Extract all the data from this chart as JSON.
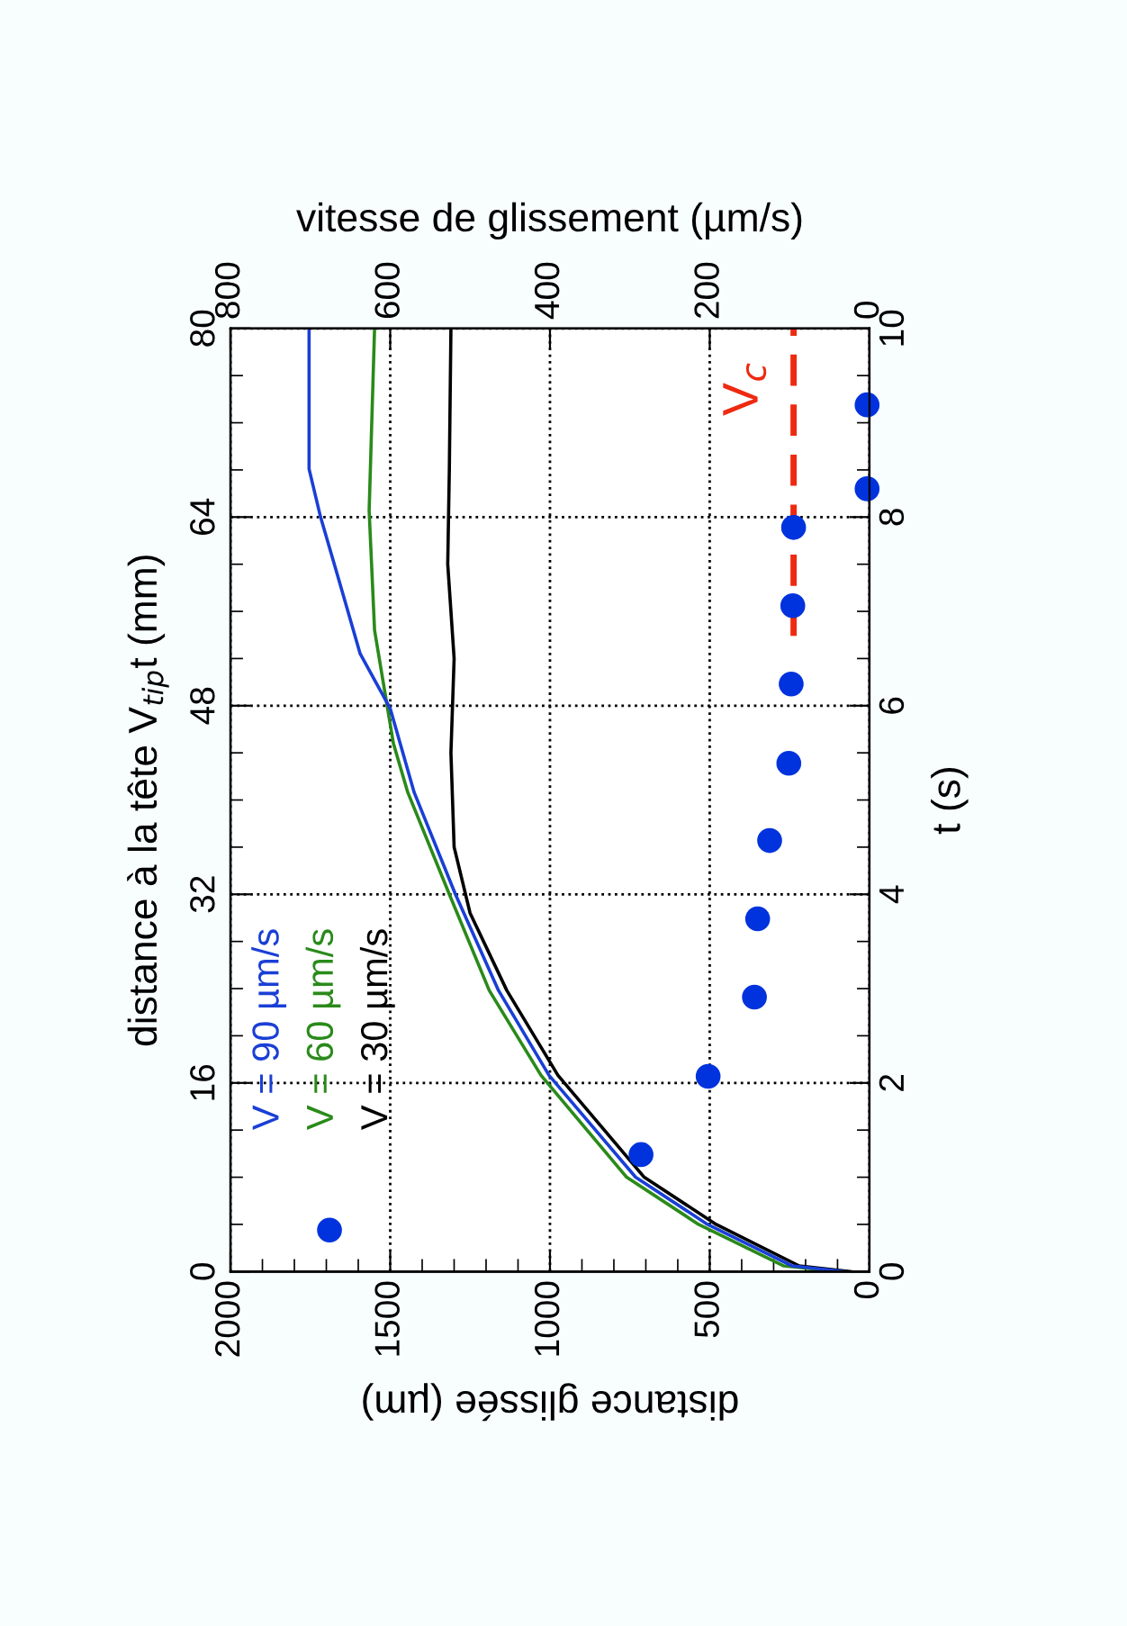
{
  "chart_data": {
    "type": "line",
    "xlabel": "distance glissée (µm)",
    "ylabel": "t (s)",
    "x2label": "vitesse de glissement (µm/s)",
    "y2label": "distance à la tête V$_{tip}$t (mm)",
    "xlim": [
      2000,
      0
    ],
    "ylim": [
      0,
      10
    ],
    "x2lim": [
      800,
      0
    ],
    "y2lim": [
      0,
      80
    ],
    "xticks": [
      2000,
      {
        "value": 1900,
        "label": null
      },
      {
        "value": 1800,
        "label": null
      },
      {
        "value": 1700,
        "label": null
      },
      {
        "value": 1600,
        "label": null
      },
      1500,
      {
        "value": 1400,
        "label": null
      },
      {
        "value": 1300,
        "label": null
      },
      {
        "value": 1200,
        "label": null
      },
      {
        "value": 1100,
        "label": null
      },
      1000,
      {
        "value": 900,
        "label": null
      },
      {
        "value": 800,
        "label": null
      },
      {
        "value": 700,
        "label": null
      },
      {
        "value": 600,
        "label": null
      },
      500,
      {
        "value": 400,
        "label": null
      },
      {
        "value": 300,
        "label": null
      },
      {
        "value": 200,
        "label": null
      },
      {
        "value": 100,
        "label": null
      },
      0
    ],
    "yticks": [
      0,
      {
        "value": 0.5,
        "label": null
      },
      {
        "value": 1,
        "label": null
      },
      {
        "value": 1.5,
        "label": null
      },
      2,
      {
        "value": 2.5,
        "label": null
      },
      {
        "value": 3,
        "label": null
      },
      {
        "value": 3.5,
        "label": null
      },
      4,
      {
        "value": 4.5,
        "label": null
      },
      {
        "value": 5,
        "label": null
      },
      {
        "value": 5.5,
        "label": null
      },
      6,
      {
        "value": 6.5,
        "label": null
      },
      {
        "value": 7,
        "label": null
      },
      {
        "value": 7.5,
        "label": null
      },
      8,
      {
        "value": 8.5,
        "label": null
      },
      {
        "value": 9,
        "label": null
      },
      {
        "value": 9.5,
        "label": null
      },
      10
    ],
    "x2ticks": [
      800,
      600,
      400,
      200,
      0
    ],
    "y2ticks": [
      0,
      {
        "value": 4,
        "label": null
      },
      {
        "value": 8,
        "label": null
      },
      {
        "value": 12,
        "label": null
      },
      16,
      {
        "value": 20,
        "label": null
      },
      {
        "value": 24,
        "label": null
      },
      {
        "value": 28,
        "label": null
      },
      32,
      {
        "value": 36,
        "label": null
      },
      {
        "value": 40,
        "label": null
      },
      {
        "value": 44,
        "label": null
      },
      48,
      {
        "value": 52,
        "label": null
      },
      {
        "value": 56,
        "label": null
      },
      {
        "value": 60,
        "label": null
      },
      64,
      {
        "value": 68,
        "label": null
      },
      {
        "value": 72,
        "label": null
      },
      {
        "value": 76,
        "label": null
      },
      80
    ],
    "grid": true,
    "legend": "left",
    "series": [
      {
        "name": "V = 90 µm/s",
        "color": "#1a3fd6",
        "x": [
          80,
          242,
          507,
          732,
          1003,
          1161,
          1296,
          1425,
          1500,
          1594,
          1669,
          1718,
          1754,
          1754
        ],
        "values": [
          0,
          0.06,
          0.5,
          1.0,
          2.08,
          2.98,
          4.0,
          5.08,
          5.97,
          6.55,
          7.43,
          8.0,
          8.51,
          10
        ]
      },
      {
        "name": "V = 60 µm/s",
        "color": "#2a8a1a",
        "x": [
          100,
          268,
          535,
          760,
          1028,
          1190,
          1315,
          1445,
          1490,
          1549,
          1566,
          1549
        ],
        "values": [
          0,
          0.06,
          0.5,
          1.0,
          2.08,
          2.98,
          4.0,
          5.08,
          5.6,
          6.8,
          8.07,
          10
        ]
      },
      {
        "name": "V = 30 µm/s",
        "color": "#000000",
        "x": [
          60,
          220,
          480,
          705,
          975,
          1135,
          1250,
          1300,
          1310,
          1300,
          1320,
          1315,
          1310
        ],
        "values": [
          0,
          0.06,
          0.5,
          1.0,
          2.08,
          2.98,
          3.8,
          4.5,
          5.5,
          6.5,
          7.5,
          8.5,
          10
        ]
      },
      {
        "type": "scatter",
        "axis": "x2",
        "marker": "circle",
        "color": "#0033dd",
        "x": [
          676,
          286,
          202,
          144,
          140,
          125,
          101,
          98,
          96,
          95,
          3,
          3
        ],
        "values": [
          0.44,
          1.24,
          2.07,
          2.91,
          3.74,
          4.57,
          5.39,
          6.23,
          7.06,
          7.89,
          8.3,
          9.19
        ]
      },
      {
        "name": "V$_{c}$",
        "axis": "x2",
        "line_style": "dashed",
        "color": "#ee2a10",
        "x": [
          95,
          95
        ],
        "values": [
          6.74,
          10
        ]
      }
    ]
  }
}
